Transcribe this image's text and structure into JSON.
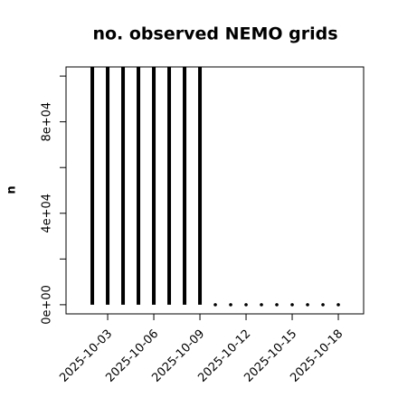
{
  "chart_data": {
    "type": "histogram-lines",
    "title": "no. observed NEMO grids",
    "y_label": "n",
    "x": [
      "2025-10-02",
      "2025-10-03",
      "2025-10-04",
      "2025-10-05",
      "2025-10-06",
      "2025-10-07",
      "2025-10-08",
      "2025-10-09",
      "2025-10-10",
      "2025-10-11",
      "2025-10-12",
      "2025-10-13",
      "2025-10-14",
      "2025-10-15",
      "2025-10-16",
      "2025-10-17",
      "2025-10-18"
    ],
    "series": [
      {
        "name": "n",
        "color": "#000000",
        "values": [
          104000,
          104000,
          104000,
          104000,
          104000,
          104000,
          104000,
          104000,
          0,
          0,
          0,
          0,
          0,
          0,
          0,
          0,
          0
        ]
      }
    ],
    "xlim": [
      "2025-09-30T07:00",
      "2025-10-19T15:30"
    ],
    "xticks": [
      "2025-10-03",
      "2025-10-06",
      "2025-10-09",
      "2025-10-12",
      "2025-10-15",
      "2025-10-18"
    ],
    "ylim": [
      -4000,
      104000
    ],
    "yticks": [
      {
        "value": 0,
        "label": "0e+00"
      },
      {
        "value": 20000,
        "label": null
      },
      {
        "value": 40000,
        "label": "4e+04"
      },
      {
        "value": 60000,
        "label": null
      },
      {
        "value": 80000,
        "label": "8e+04"
      },
      {
        "value": 100000,
        "label": null
      }
    ]
  }
}
